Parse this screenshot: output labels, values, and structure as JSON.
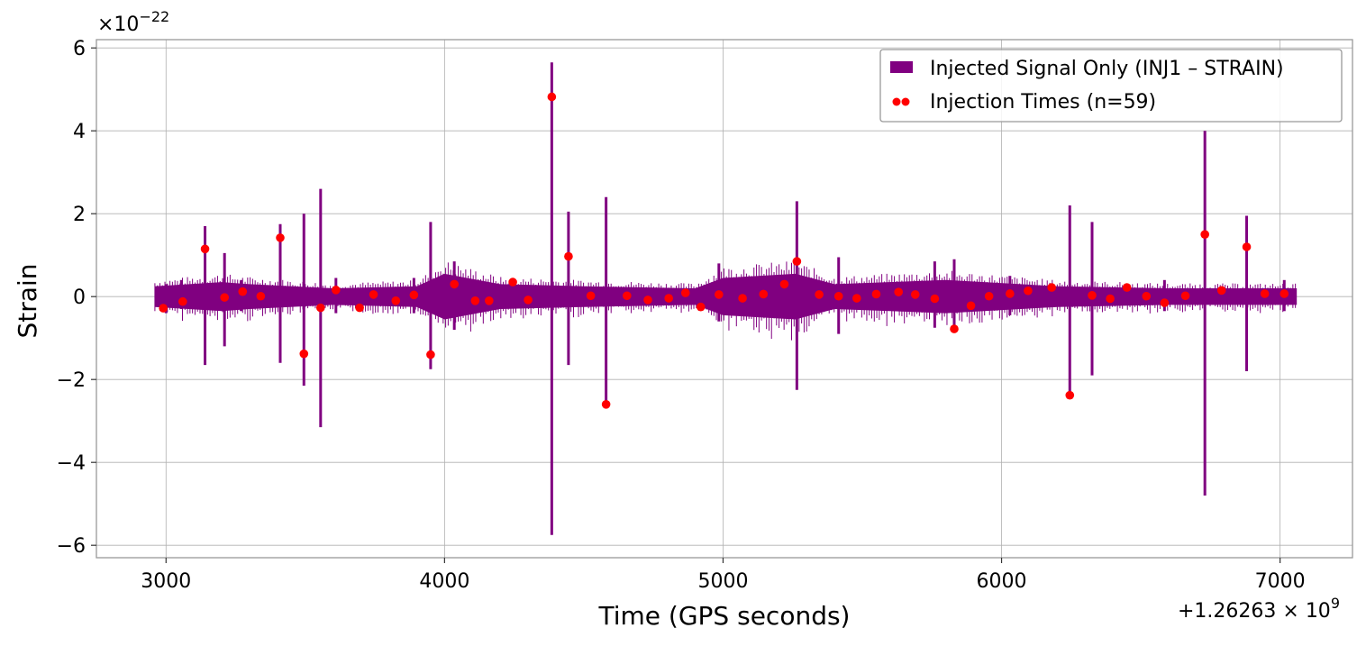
{
  "chart_data": {
    "type": "line",
    "title": "",
    "xlabel": "Time (GPS seconds)",
    "ylabel": "Strain",
    "x_offset_label": "+1.26263 × 10",
    "x_offset_exponent": "9",
    "y_scale_label": "×10",
    "y_scale_exponent": "−22",
    "xlim": [
      2750,
      7260
    ],
    "ylim": [
      -6.3,
      6.2
    ],
    "x_ticks": [
      3000,
      4000,
      5000,
      6000,
      7000
    ],
    "x_tick_labels": [
      "3000",
      "4000",
      "5000",
      "6000",
      "7000"
    ],
    "y_ticks": [
      -6,
      -4,
      -2,
      0,
      2,
      4,
      6
    ],
    "y_tick_labels": [
      "−6",
      "−4",
      "−2",
      "0",
      "2",
      "4",
      "6"
    ],
    "grid": true,
    "legend_position": "top-right",
    "series": [
      {
        "name": "Injected Signal Only (INJ1 – STRAIN)",
        "color": "#800080",
        "style": "band+spikes",
        "x_start": 2960,
        "x_end": 7060,
        "envelope": [
          {
            "x": 2960,
            "half": 0.25
          },
          {
            "x": 3200,
            "half": 0.35
          },
          {
            "x": 3300,
            "half": 0.3
          },
          {
            "x": 3600,
            "half": 0.2
          },
          {
            "x": 3900,
            "half": 0.25
          },
          {
            "x": 4000,
            "half": 0.55
          },
          {
            "x": 4200,
            "half": 0.3
          },
          {
            "x": 4500,
            "half": 0.25
          },
          {
            "x": 4900,
            "half": 0.2
          },
          {
            "x": 5000,
            "half": 0.45
          },
          {
            "x": 5260,
            "half": 0.55
          },
          {
            "x": 5400,
            "half": 0.3
          },
          {
            "x": 5800,
            "half": 0.4
          },
          {
            "x": 6200,
            "half": 0.25
          },
          {
            "x": 6600,
            "half": 0.2
          },
          {
            "x": 7060,
            "half": 0.2
          }
        ],
        "spikes": [
          {
            "x": 3000,
            "hi": 0.3,
            "lo": -0.4
          },
          {
            "x": 3055,
            "hi": 0.4,
            "lo": -0.3
          },
          {
            "x": 3140,
            "hi": 1.7,
            "lo": -1.65
          },
          {
            "x": 3210,
            "hi": 1.05,
            "lo": -1.2
          },
          {
            "x": 3270,
            "hi": 0.4,
            "lo": -0.35
          },
          {
            "x": 3410,
            "hi": 1.75,
            "lo": -1.6
          },
          {
            "x": 3495,
            "hi": 2.0,
            "lo": -2.15
          },
          {
            "x": 3555,
            "hi": 2.6,
            "lo": -3.15
          },
          {
            "x": 3610,
            "hi": 0.45,
            "lo": -0.4
          },
          {
            "x": 3890,
            "hi": 0.45,
            "lo": -0.4
          },
          {
            "x": 3950,
            "hi": 1.8,
            "lo": -1.75
          },
          {
            "x": 4035,
            "hi": 0.85,
            "lo": -0.8
          },
          {
            "x": 4385,
            "hi": 5.65,
            "lo": -5.75
          },
          {
            "x": 4445,
            "hi": 2.05,
            "lo": -1.65
          },
          {
            "x": 4580,
            "hi": 2.4,
            "lo": -2.6
          },
          {
            "x": 4985,
            "hi": 0.8,
            "lo": -0.6
          },
          {
            "x": 5265,
            "hi": 2.3,
            "lo": -2.25
          },
          {
            "x": 5415,
            "hi": 0.95,
            "lo": -0.9
          },
          {
            "x": 5760,
            "hi": 0.85,
            "lo": -0.75
          },
          {
            "x": 5830,
            "hi": 0.9,
            "lo": -0.85
          },
          {
            "x": 6030,
            "hi": 0.5,
            "lo": -0.45
          },
          {
            "x": 6245,
            "hi": 2.2,
            "lo": -2.4
          },
          {
            "x": 6325,
            "hi": 1.8,
            "lo": -1.9
          },
          {
            "x": 6585,
            "hi": 0.4,
            "lo": -0.35
          },
          {
            "x": 6730,
            "hi": 4.0,
            "lo": -4.8
          },
          {
            "x": 6880,
            "hi": 1.95,
            "lo": -1.8
          },
          {
            "x": 7015,
            "hi": 0.4,
            "lo": -0.35
          }
        ]
      },
      {
        "name": "Injection Times (n=59)",
        "color": "#ff0000",
        "style": "scatter",
        "x": [
          2990,
          3060,
          3140,
          3210,
          3275,
          3340,
          3410,
          3495,
          3555,
          3610,
          3695,
          3745,
          3825,
          3890,
          3950,
          4035,
          4110,
          4160,
          4245,
          4300,
          4385,
          4445,
          4525,
          4580,
          4655,
          4730,
          4805,
          4865,
          4920,
          4985,
          5070,
          5145,
          5220,
          5265,
          5345,
          5415,
          5480,
          5550,
          5630,
          5690,
          5760,
          5830,
          5890,
          5955,
          6030,
          6095,
          6180,
          6245,
          6325,
          6390,
          6450,
          6520,
          6585,
          6660,
          6730,
          6790,
          6880,
          6945,
          7015
        ],
        "y": [
          -0.28,
          -0.12,
          1.15,
          -0.02,
          0.12,
          0.01,
          1.42,
          -1.38,
          -0.27,
          0.16,
          -0.27,
          0.05,
          -0.1,
          0.04,
          -1.4,
          0.3,
          -0.1,
          -0.1,
          0.35,
          -0.08,
          4.82,
          0.97,
          0.02,
          -2.6,
          0.02,
          -0.08,
          -0.04,
          0.09,
          -0.25,
          0.05,
          -0.04,
          0.06,
          0.3,
          0.85,
          0.05,
          0.01,
          -0.04,
          0.06,
          0.11,
          0.05,
          -0.05,
          -0.78,
          -0.22,
          0.01,
          0.07,
          0.14,
          0.22,
          -2.38,
          0.03,
          -0.05,
          0.22,
          0.01,
          -0.15,
          0.02,
          1.5,
          0.15,
          1.2,
          0.07,
          0.07
        ]
      }
    ]
  }
}
